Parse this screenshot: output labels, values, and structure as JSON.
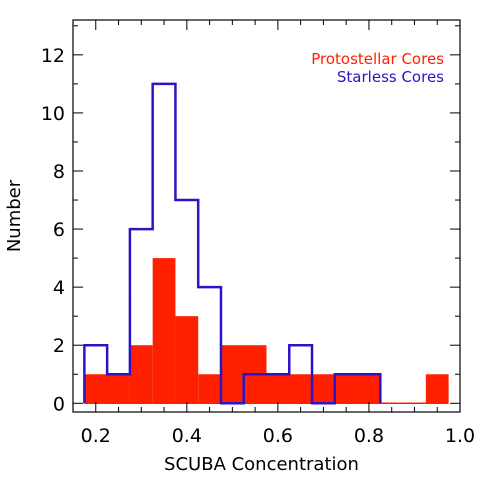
{
  "chart_data": {
    "type": "bar",
    "subtype": "histogram",
    "xlabel": "SCUBA Concentration",
    "ylabel": "Number",
    "xlim": [
      0.15,
      1.0
    ],
    "ylim": [
      -0.3,
      13.2
    ],
    "bin_width": 0.05,
    "grid": false,
    "legend_position": "top-right",
    "x_ticks": [
      0.2,
      0.4,
      0.6,
      0.8,
      1.0
    ],
    "x_tick_labels": [
      "0.2",
      "0.4",
      "0.6",
      "0.8",
      "1.0"
    ],
    "y_ticks": [
      0,
      2,
      4,
      6,
      8,
      10,
      12
    ],
    "y_tick_labels": [
      "0",
      "2",
      "4",
      "6",
      "8",
      "10",
      "12"
    ],
    "series": [
      {
        "name": "Protostellar Cores",
        "style": "filled",
        "color": "#ff2000",
        "bins": [
          {
            "x0": 0.175,
            "x1": 0.275,
            "value": 1
          },
          {
            "x0": 0.275,
            "x1": 0.325,
            "value": 2
          },
          {
            "x0": 0.325,
            "x1": 0.375,
            "value": 5
          },
          {
            "x0": 0.375,
            "x1": 0.425,
            "value": 3
          },
          {
            "x0": 0.425,
            "x1": 0.475,
            "value": 1
          },
          {
            "x0": 0.475,
            "x1": 0.575,
            "value": 2
          },
          {
            "x0": 0.575,
            "x1": 0.825,
            "value": 1
          },
          {
            "x0": 0.925,
            "x1": 0.975,
            "value": 1
          }
        ]
      },
      {
        "name": "Starless Cores",
        "style": "step",
        "color": "#2a14c8",
        "bins": [
          {
            "x0": 0.175,
            "x1": 0.225,
            "value": 2
          },
          {
            "x0": 0.225,
            "x1": 0.275,
            "value": 1
          },
          {
            "x0": 0.275,
            "x1": 0.325,
            "value": 6
          },
          {
            "x0": 0.325,
            "x1": 0.375,
            "value": 11
          },
          {
            "x0": 0.375,
            "x1": 0.425,
            "value": 7
          },
          {
            "x0": 0.425,
            "x1": 0.475,
            "value": 4
          },
          {
            "x0": 0.475,
            "x1": 0.525,
            "value": 0
          },
          {
            "x0": 0.525,
            "x1": 0.575,
            "value": 1
          },
          {
            "x0": 0.575,
            "x1": 0.625,
            "value": 1
          },
          {
            "x0": 0.625,
            "x1": 0.675,
            "value": 2
          },
          {
            "x0": 0.675,
            "x1": 0.725,
            "value": 0
          },
          {
            "x0": 0.725,
            "x1": 0.825,
            "value": 1
          }
        ]
      }
    ]
  }
}
